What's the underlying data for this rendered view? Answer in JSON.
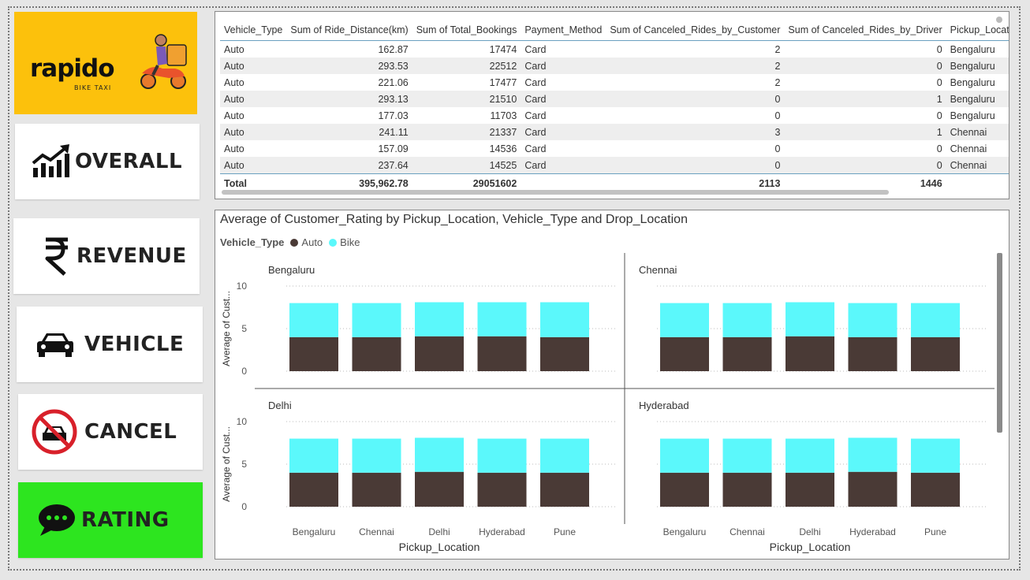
{
  "brand": {
    "name": "rapido",
    "tagline": "BIKE TAXI",
    "tile_color": "#fcc10c"
  },
  "nav": [
    {
      "id": "overall",
      "label": "OVERALL",
      "icon": "chart-growth-icon",
      "active": false
    },
    {
      "id": "revenue",
      "label": "REVENUE",
      "icon": "rupee-icon",
      "active": false
    },
    {
      "id": "vehicle",
      "label": "VEHICLE",
      "icon": "car-icon",
      "active": false
    },
    {
      "id": "cancel",
      "label": "CANCEL",
      "icon": "no-car-icon",
      "active": false
    },
    {
      "id": "rating",
      "label": "RATING",
      "icon": "chat-bubble-icon",
      "active": true
    }
  ],
  "accent_active": "#2de51f",
  "table": {
    "headers": [
      "Vehicle_Type",
      "Sum of Ride_Distance(km)",
      "Sum of Total_Bookings",
      "Payment_Method",
      "Sum of Canceled_Rides_by_Customer",
      "Sum of Canceled_Rides_by_Driver",
      "Pickup_Location"
    ],
    "rows": [
      [
        "Auto",
        "162.87",
        "17474",
        "Card",
        "2",
        "0",
        "Bengaluru"
      ],
      [
        "Auto",
        "293.53",
        "22512",
        "Card",
        "2",
        "0",
        "Bengaluru"
      ],
      [
        "Auto",
        "221.06",
        "17477",
        "Card",
        "2",
        "0",
        "Bengaluru"
      ],
      [
        "Auto",
        "293.13",
        "21510",
        "Card",
        "0",
        "1",
        "Bengaluru"
      ],
      [
        "Auto",
        "177.03",
        "11703",
        "Card",
        "0",
        "0",
        "Bengaluru"
      ],
      [
        "Auto",
        "241.11",
        "21337",
        "Card",
        "3",
        "1",
        "Chennai"
      ],
      [
        "Auto",
        "157.09",
        "14536",
        "Card",
        "0",
        "0",
        "Chennai"
      ],
      [
        "Auto",
        "237.64",
        "14525",
        "Card",
        "0",
        "0",
        "Chennai"
      ]
    ],
    "total": [
      "Total",
      "395,962.78",
      "29051602",
      "",
      "2113",
      "1446",
      ""
    ]
  },
  "chart_data": {
    "type": "bar",
    "stacked": true,
    "title": "Average of Customer_Rating by Pickup_Location, Vehicle_Type and Drop_Location",
    "legend_title": "Vehicle_Type",
    "legend_placement": "top-left",
    "xlabel": "Pickup_Location",
    "ylabel": "Average of Cust...",
    "ylim": [
      0,
      10
    ],
    "yticks": [
      0,
      5,
      10
    ],
    "grid": true,
    "categories": [
      "Bengaluru",
      "Chennai",
      "Delhi",
      "Hyderabad",
      "Pune"
    ],
    "series_colors": {
      "Auto": "#4a3a36",
      "Bike": "#5bf8fb"
    },
    "panels": [
      {
        "name": "Bengaluru",
        "series": [
          {
            "name": "Auto",
            "values": [
              4.0,
              4.0,
              4.1,
              4.1,
              4.0
            ]
          },
          {
            "name": "Bike",
            "values": [
              4.0,
              4.0,
              4.0,
              4.0,
              4.1
            ]
          }
        ]
      },
      {
        "name": "Chennai",
        "series": [
          {
            "name": "Auto",
            "values": [
              4.0,
              4.0,
              4.1,
              4.0,
              4.0
            ]
          },
          {
            "name": "Bike",
            "values": [
              4.0,
              4.0,
              4.0,
              4.0,
              4.0
            ]
          }
        ]
      },
      {
        "name": "Delhi",
        "series": [
          {
            "name": "Auto",
            "values": [
              4.0,
              4.0,
              4.1,
              4.0,
              4.0
            ]
          },
          {
            "name": "Bike",
            "values": [
              4.0,
              4.0,
              4.0,
              4.0,
              4.0
            ]
          }
        ]
      },
      {
        "name": "Hyderabad",
        "series": [
          {
            "name": "Auto",
            "values": [
              4.0,
              4.0,
              4.0,
              4.1,
              4.0
            ]
          },
          {
            "name": "Bike",
            "values": [
              4.0,
              4.0,
              4.0,
              4.0,
              4.0
            ]
          }
        ]
      }
    ]
  }
}
